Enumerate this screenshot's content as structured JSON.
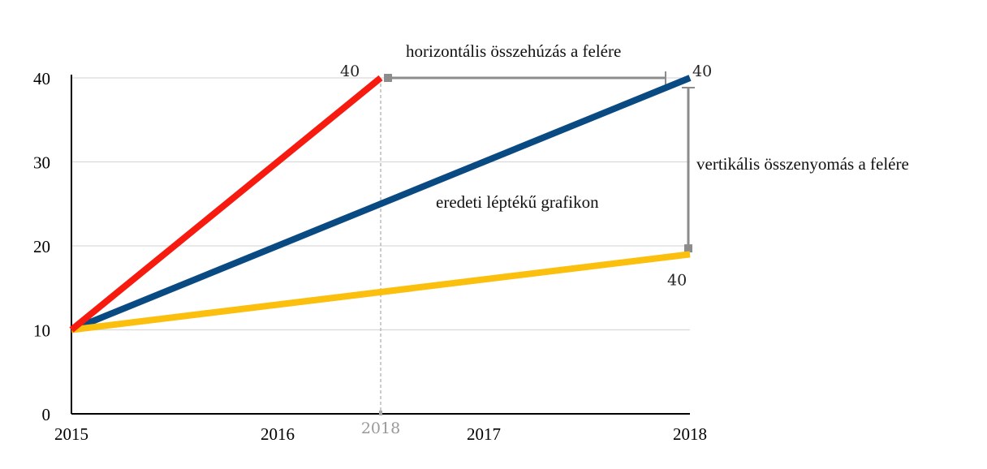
{
  "chart_data": {
    "type": "line",
    "title": "",
    "x": [
      2015,
      2018
    ],
    "xticks": [
      "2015",
      "2016",
      "2017",
      "2018"
    ],
    "yticks": [
      "0",
      "10",
      "20",
      "30",
      "40"
    ],
    "xlim": [
      2015,
      2018
    ],
    "ylim": [
      0,
      40
    ],
    "grid": true,
    "series": [
      {
        "name": "eredeti léptékű grafikon",
        "x": [
          2015,
          2018
        ],
        "values": [
          10,
          40
        ],
        "color": "#0a4a82"
      },
      {
        "name": "horizontális összehúzás a felére",
        "x": [
          2015,
          2016.5
        ],
        "values": [
          10,
          40
        ],
        "color": "#f71a0f"
      },
      {
        "name": "vertikális összenyomás a felére",
        "x": [
          2015,
          2018
        ],
        "values": [
          10,
          19
        ],
        "color": "#fbbf0e"
      }
    ],
    "annotations": {
      "horizontal": "horizontális összehúzás a felére",
      "vertical": "vertikális összenyomás a felére",
      "original": "eredeti léptékű grafikon",
      "red_end_value": "40",
      "blue_end_value": "40",
      "yellow_end_value": "40",
      "compressed_x_label": "2018",
      "compressed_x_position": 2016.5
    }
  }
}
